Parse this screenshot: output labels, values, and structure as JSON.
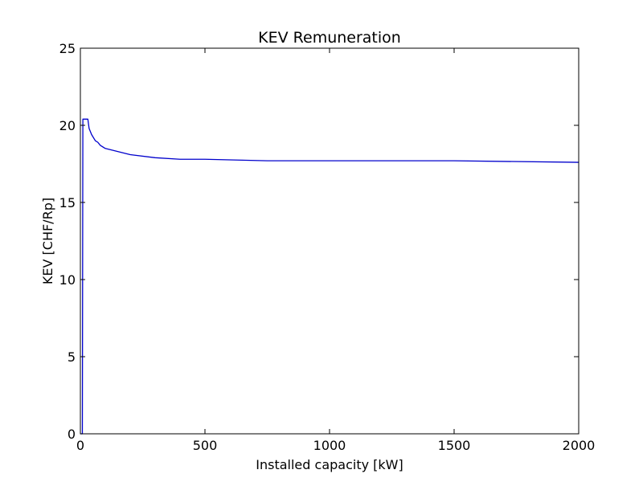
{
  "chart_data": {
    "type": "line",
    "title": "KEV Remuneration",
    "xlabel": "Installed capacity [kW]",
    "ylabel": "KEV [CHF/Rp]",
    "xlim": [
      0,
      2000
    ],
    "ylim": [
      0,
      25
    ],
    "x_ticks": [
      0,
      500,
      1000,
      1500,
      2000
    ],
    "x_tick_labels": [
      "0",
      "500",
      "1000",
      "1500",
      "2000"
    ],
    "y_ticks": [
      0,
      5,
      10,
      15,
      20,
      25
    ],
    "y_tick_labels": [
      "0",
      "5",
      "10",
      "15",
      "20",
      "25"
    ],
    "grid": false,
    "series": [
      {
        "color": "#0000cc",
        "x": [
          0,
          8,
          10,
          30,
          35,
          45,
          60,
          70,
          80,
          100,
          150,
          200,
          300,
          400,
          500,
          750,
          1000,
          1500,
          2000
        ],
        "y": [
          0,
          0,
          20.4,
          20.4,
          19.8,
          19.4,
          19.0,
          18.9,
          18.7,
          18.5,
          18.3,
          18.1,
          17.9,
          17.8,
          17.8,
          17.7,
          17.7,
          17.7,
          17.6
        ]
      }
    ]
  }
}
